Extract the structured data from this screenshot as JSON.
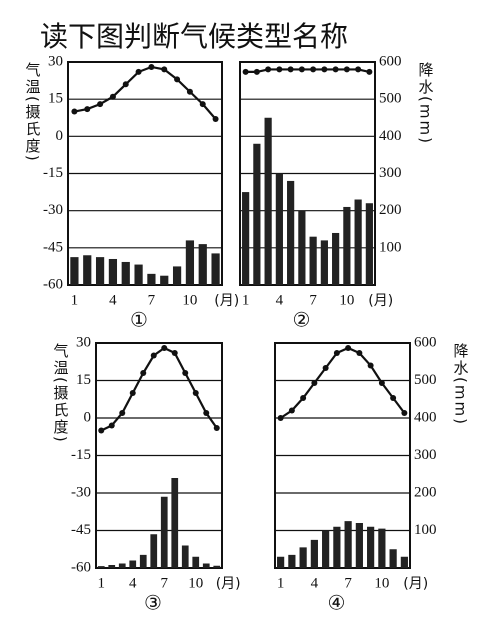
{
  "title": "读下图判断气候类型名称",
  "chart_data": [
    {
      "type": "climate",
      "label": "①",
      "ylabel": "气温(摄氏度)",
      "xlabel": "(月)",
      "categories": [
        "1",
        null,
        null,
        "4",
        null,
        null,
        "7",
        null,
        null,
        "10",
        null,
        null
      ],
      "ylim": [
        -60,
        30
      ],
      "yticks": [
        30,
        15,
        0,
        -15,
        -30,
        -45,
        -60
      ],
      "y2lim": [
        0,
        600
      ],
      "grid": true,
      "series": [
        {
          "type": "line",
          "color": "#111",
          "values": [
            10,
            11,
            13,
            16,
            21,
            26,
            28,
            27,
            23,
            18,
            13,
            7
          ]
        },
        {
          "type": "bar",
          "axis": "y2",
          "color": "#222",
          "values": [
            75,
            80,
            75,
            70,
            62,
            55,
            30,
            25,
            50,
            120,
            110,
            85
          ]
        }
      ]
    },
    {
      "type": "climate",
      "label": "②",
      "ylabel": "降水(mm)",
      "xlabel": "(月)",
      "categories": [
        "1",
        null,
        null,
        "4",
        null,
        null,
        "7",
        null,
        null,
        "10",
        null,
        null
      ],
      "ylim": [
        -60,
        30
      ],
      "y2lim": [
        0,
        600
      ],
      "y2ticks": [
        600,
        500,
        400,
        300,
        200,
        100
      ],
      "grid": true,
      "series": [
        {
          "type": "line",
          "color": "#111",
          "values": [
            26,
            26,
            27,
            27,
            27,
            27,
            27,
            27,
            27,
            27,
            27,
            26
          ]
        },
        {
          "type": "bar",
          "axis": "y2",
          "color": "#222",
          "values": [
            250,
            380,
            450,
            300,
            280,
            200,
            130,
            120,
            140,
            210,
            230,
            220
          ]
        }
      ]
    },
    {
      "type": "climate",
      "label": "③",
      "ylabel": "气温(摄氏度)",
      "xlabel": "(月)",
      "categories": [
        "1",
        null,
        null,
        "4",
        null,
        null,
        "7",
        null,
        null,
        "10",
        null,
        null
      ],
      "ylim": [
        -60,
        30
      ],
      "yticks": [
        30,
        15,
        0,
        -15,
        -30,
        -45,
        -60
      ],
      "y2lim": [
        0,
        600
      ],
      "grid": true,
      "series": [
        {
          "type": "line",
          "color": "#111",
          "values": [
            -5,
            -3,
            2,
            10,
            18,
            25,
            28,
            26,
            18,
            10,
            2,
            -4
          ]
        },
        {
          "type": "bar",
          "axis": "y2",
          "color": "#222",
          "values": [
            5,
            8,
            12,
            20,
            35,
            90,
            190,
            240,
            60,
            30,
            12,
            6
          ]
        }
      ]
    },
    {
      "type": "climate",
      "label": "④",
      "ylabel": "降水(mm)",
      "xlabel": "(月)",
      "categories": [
        "1",
        null,
        null,
        "4",
        null,
        null,
        "7",
        null,
        null,
        "10",
        null,
        null
      ],
      "ylim": [
        -60,
        30
      ],
      "y2lim": [
        0,
        600
      ],
      "y2ticks": [
        600,
        500,
        400,
        300,
        200,
        100
      ],
      "grid": true,
      "series": [
        {
          "type": "line",
          "color": "#111",
          "values": [
            0,
            3,
            8,
            14,
            20,
            26,
            28,
            26,
            21,
            14,
            8,
            2
          ]
        },
        {
          "type": "bar",
          "axis": "y2",
          "color": "#222",
          "values": [
            30,
            35,
            55,
            75,
            100,
            110,
            125,
            120,
            110,
            105,
            50,
            30
          ]
        }
      ]
    }
  ]
}
